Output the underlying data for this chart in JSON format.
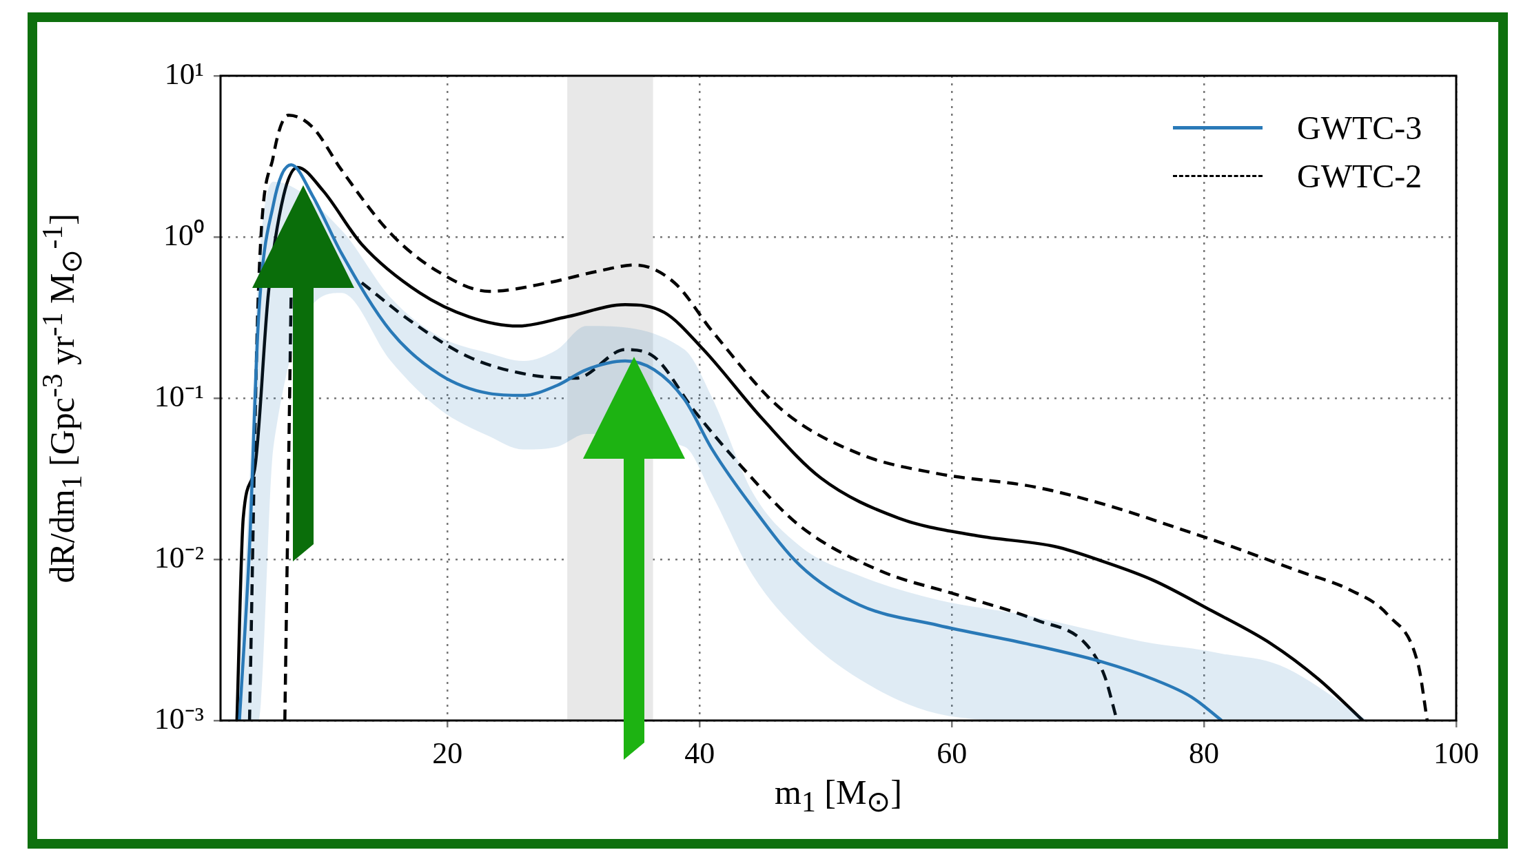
{
  "chart_data": {
    "type": "line",
    "xlabel": "m$_{1}$ [M$_{⊙}$]",
    "ylabel": "dR/dm$_{1}$ [Gpc$^{-3}$ yr$^{-1}$ M$_{⊙}$$^{-1}$]",
    "xlim": [
      2,
      100
    ],
    "xticks": [
      20,
      40,
      60,
      80,
      100
    ],
    "ylim": [
      0.001,
      10
    ],
    "yticks": [
      {
        "value": 0.001,
        "label": "10⁻³"
      },
      {
        "value": 0.01,
        "label": "10⁻²"
      },
      {
        "value": 0.1,
        "label": "10⁻¹"
      },
      {
        "value": 1,
        "label": "10⁰"
      },
      {
        "value": 10,
        "label": "10¹"
      }
    ],
    "log": "y",
    "grid": true,
    "legend": "top right",
    "bands": [
      {
        "axis": "x",
        "from": 29.5,
        "to": 36.3,
        "color": "#e8e8e8"
      }
    ],
    "series": [
      {
        "name": "GWTC-3",
        "color": "#2a7ab8",
        "line_style": "solid",
        "x": [
          3.5,
          4.3,
          5.0,
          6.2,
          7.6,
          9.3,
          11.6,
          15.5,
          19.4,
          23.3,
          26,
          28.7,
          31,
          34.1,
          36.4,
          38.8,
          41,
          44.2,
          48,
          52.7,
          58.9,
          65.9,
          72,
          76,
          79,
          81.4,
          86,
          93
        ],
        "values": [
          0.001,
          0.012,
          0.3,
          1.6,
          2.8,
          1.8,
          0.79,
          0.26,
          0.14,
          0.107,
          0.104,
          0.12,
          0.15,
          0.17,
          0.15,
          0.098,
          0.048,
          0.021,
          0.0091,
          0.0052,
          0.0039,
          0.003,
          0.0023,
          0.0018,
          0.0014,
          0.001,
          null,
          null
        ],
        "lower": [
          0.001,
          0.001,
          0.001,
          0.05,
          null,
          null,
          0.45,
          0.17,
          0.085,
          0.058,
          0.048,
          0.05,
          0.06,
          null,
          null,
          0.05,
          0.025,
          0.008,
          0.0035,
          0.0018,
          0.0011,
          0.001,
          0.001,
          0.001,
          0.001,
          0.001,
          0.001,
          0.001
        ],
        "upper": [
          0.002,
          0.03,
          0.6,
          2.2,
          null,
          null,
          1.1,
          0.42,
          0.24,
          0.19,
          0.17,
          0.2,
          0.28,
          null,
          null,
          0.2,
          0.1,
          0.026,
          0.012,
          0.0079,
          0.0056,
          0.0045,
          0.0035,
          0.003,
          0.0028,
          0.0026,
          0.0022,
          0.001
        ]
      },
      {
        "name": "GWTC-2",
        "color": "#000000",
        "line_style": "dashed",
        "x": [
          4.3,
          5,
          6.2,
          7.4,
          9.3,
          11.6,
          15.5,
          19.4,
          23.3,
          28,
          31.8,
          34.9,
          38,
          41,
          46.5,
          52.7,
          58.9,
          66.7,
          72.9,
          77.5,
          82.2,
          87.6,
          91.5,
          94.6,
          97,
          97.7
        ],
        "values": [
          0.001,
          0.45,
          3.2,
          5.7,
          4.8,
          2.6,
          1.05,
          0.6,
          0.46,
          0.52,
          0.61,
          0.67,
          0.52,
          0.26,
          0.085,
          0.045,
          0.034,
          0.028,
          0.021,
          0.016,
          0.012,
          0.0084,
          0.0065,
          0.0045,
          0.0022,
          0.001
        ]
      },
      {
        "color": "#000000",
        "line_style": "dashed",
        "x": [
          7.1,
          7.6,
          8.5,
          10.1,
          13.2,
          17.1,
          21.7,
          26.4,
          30.2,
          34.1,
          36.4,
          39.5,
          43.4,
          48,
          54.3,
          60.5,
          66.7,
          70.6,
          72.1,
          73.1
        ],
        "values": [
          0.001,
          0.45,
          null,
          null,
          0.52,
          0.3,
          0.18,
          0.14,
          0.133,
          0.2,
          0.18,
          0.085,
          0.037,
          0.016,
          0.0085,
          0.006,
          0.0042,
          0.003,
          0.0019,
          0.001
        ]
      },
      {
        "color": "#000000",
        "line_style": "solid",
        "x": [
          3.3,
          3.8,
          4.7,
          5.8,
          7,
          8.1,
          10.1,
          13.2,
          17.8,
          21.7,
          25.6,
          29.5,
          34.1,
          37.2,
          40.3,
          45,
          49.6,
          55.8,
          62,
          68.2,
          72,
          76,
          80.6,
          85.3,
          89.1,
          92.6
        ],
        "values": [
          0.001,
          0.018,
          0.036,
          0.45,
          1.8,
          2.7,
          1.95,
          0.9,
          0.45,
          0.32,
          0.28,
          0.32,
          0.38,
          0.34,
          0.2,
          0.074,
          0.032,
          0.018,
          0.014,
          0.012,
          0.0097,
          0.0074,
          0.0048,
          0.003,
          0.0018,
          0.001
        ]
      }
    ]
  }
}
